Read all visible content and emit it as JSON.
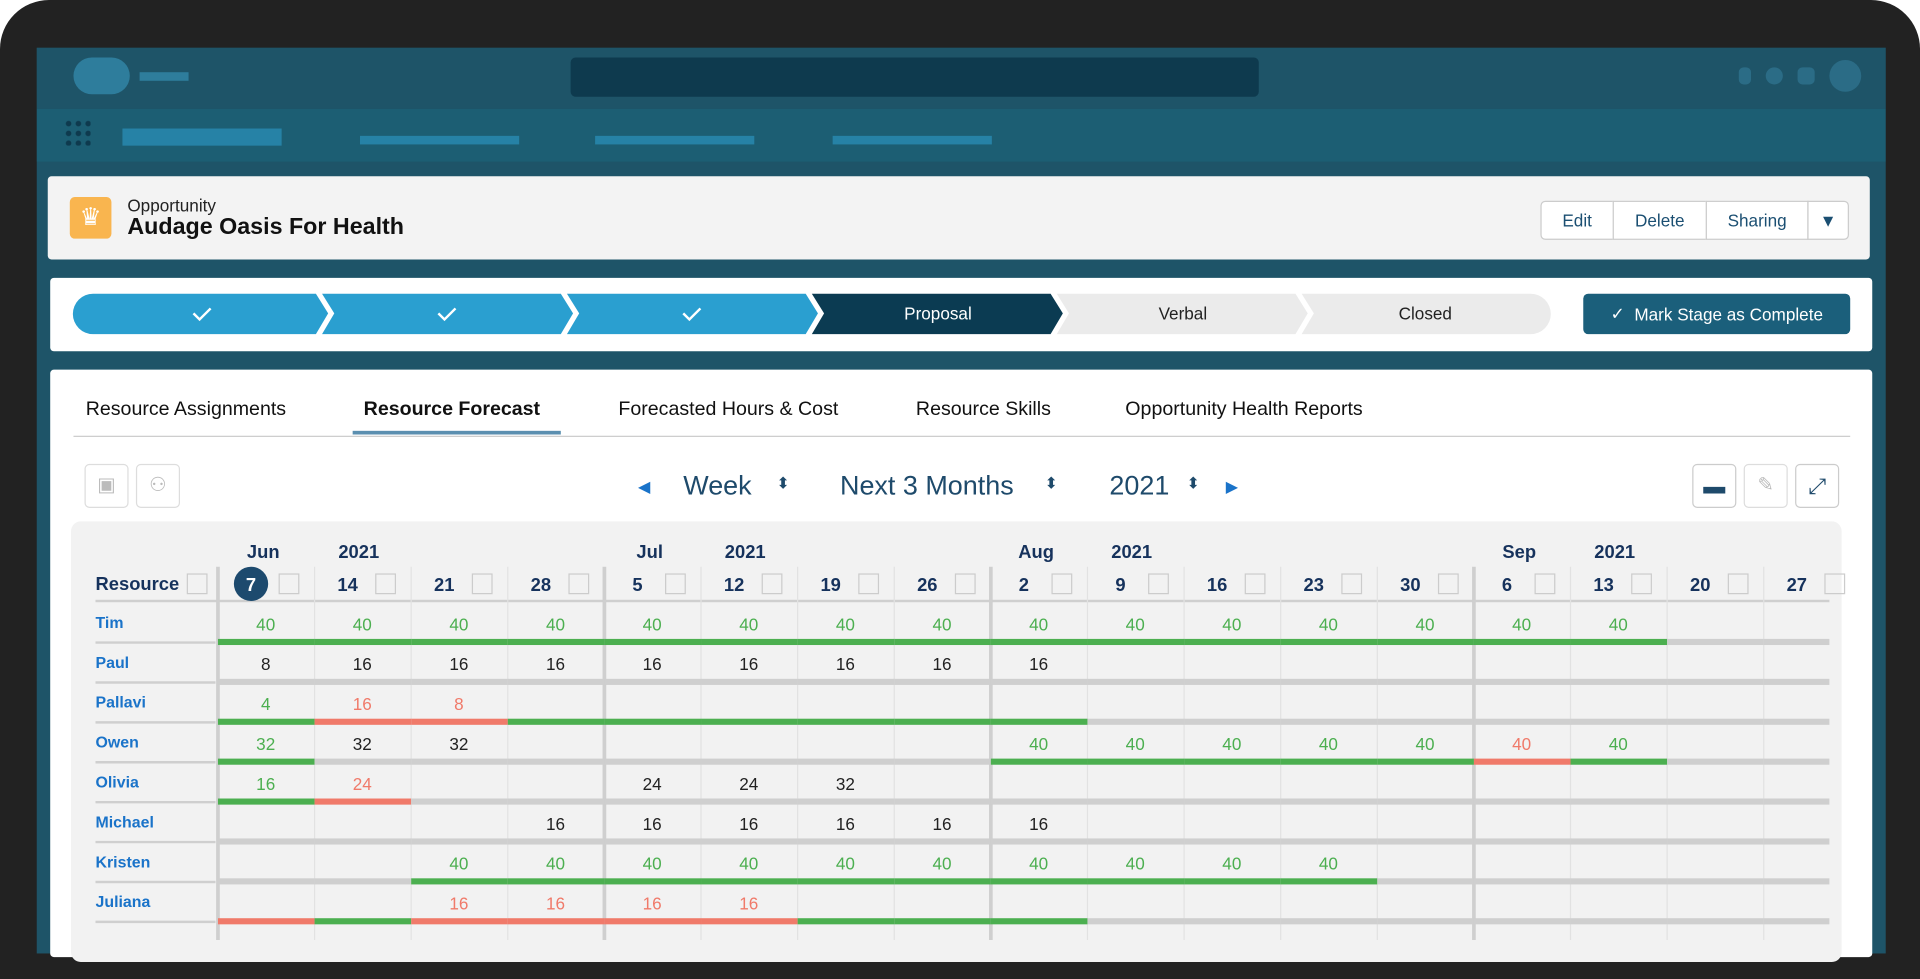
{
  "header": {
    "object_type": "Opportunity",
    "title": "Audage Oasis For Health",
    "buttons": [
      "Edit",
      "Delete",
      "Sharing"
    ]
  },
  "path": {
    "stages": [
      "Proposal",
      "Verbal",
      "Closed"
    ],
    "action": "Mark Stage as Complete"
  },
  "tabs": {
    "items": [
      "Resource Assignments",
      "Resource Forecast",
      "Forecasted Hours & Cost",
      "Resource Skills",
      "Opportunity Health Reports"
    ],
    "active": 1
  },
  "controls": {
    "period": "Week",
    "range": "Next 3 Months",
    "year": "2021"
  },
  "grid": {
    "resource_header": "Resource",
    "months": [
      {
        "label": "Jun",
        "year": "2021",
        "column": 0
      },
      {
        "label": "Jul",
        "year": "2021",
        "column": 4
      },
      {
        "label": "Aug",
        "year": "2021",
        "column": 8
      },
      {
        "label": "Sep",
        "year": "2021",
        "column": 13
      }
    ],
    "weeks": [
      "7",
      "14",
      "21",
      "28",
      "5",
      "12",
      "19",
      "26",
      "2",
      "9",
      "16",
      "23",
      "30",
      "6",
      "13",
      "20",
      "27"
    ],
    "today_column": 0,
    "palette": {
      "g": "#4caf50",
      "r": "#f07a6a",
      "k": "#222222",
      ".": "#cfcfcf"
    },
    "rows": [
      {
        "name": "Tim",
        "cells": [
          40,
          40,
          40,
          40,
          40,
          40,
          40,
          40,
          40,
          40,
          40,
          40,
          40,
          40,
          40,
          null,
          null
        ],
        "tone": "ggggggggggggggg..",
        "bar": "ggggggggggggggg.."
      },
      {
        "name": "Paul",
        "cells": [
          8,
          16,
          16,
          16,
          16,
          16,
          16,
          16,
          16,
          null,
          null,
          null,
          null,
          null,
          null,
          null,
          null
        ],
        "tone": "kkkkkkkkk........",
        "bar": "................."
      },
      {
        "name": "Pallavi",
        "cells": [
          4,
          16,
          8,
          null,
          null,
          null,
          null,
          null,
          null,
          null,
          null,
          null,
          null,
          null,
          null,
          null,
          null
        ],
        "tone": "grr..............",
        "bar": "grrgggggg........"
      },
      {
        "name": "Owen",
        "cells": [
          32,
          32,
          32,
          null,
          null,
          null,
          null,
          null,
          40,
          40,
          40,
          40,
          40,
          40,
          40,
          null,
          null
        ],
        "tone": "gkk.....gggggrg..",
        "bar": "g.......gggggrg.."
      },
      {
        "name": "Olivia",
        "cells": [
          16,
          24,
          null,
          null,
          24,
          24,
          32,
          null,
          null,
          null,
          null,
          null,
          null,
          null,
          null,
          null,
          null
        ],
        "tone": "gr..kkk..........",
        "bar": "gr..............."
      },
      {
        "name": "Michael",
        "cells": [
          null,
          null,
          null,
          16,
          16,
          16,
          16,
          16,
          16,
          null,
          null,
          null,
          null,
          null,
          null,
          null,
          null
        ],
        "tone": "...kkkkkk........",
        "bar": "................."
      },
      {
        "name": "Kristen",
        "cells": [
          null,
          null,
          40,
          40,
          40,
          40,
          40,
          40,
          40,
          40,
          40,
          40,
          null,
          null,
          null,
          null,
          null
        ],
        "tone": "..gggggggggg.....",
        "bar": "..gggggggggg....."
      },
      {
        "name": "Juliana",
        "cells": [
          null,
          null,
          16,
          16,
          16,
          16,
          null,
          null,
          null,
          null,
          null,
          null,
          null,
          null,
          null,
          null,
          null
        ],
        "tone": "..rrrr...........",
        "bar": "rgrrrrggg........"
      }
    ]
  }
}
